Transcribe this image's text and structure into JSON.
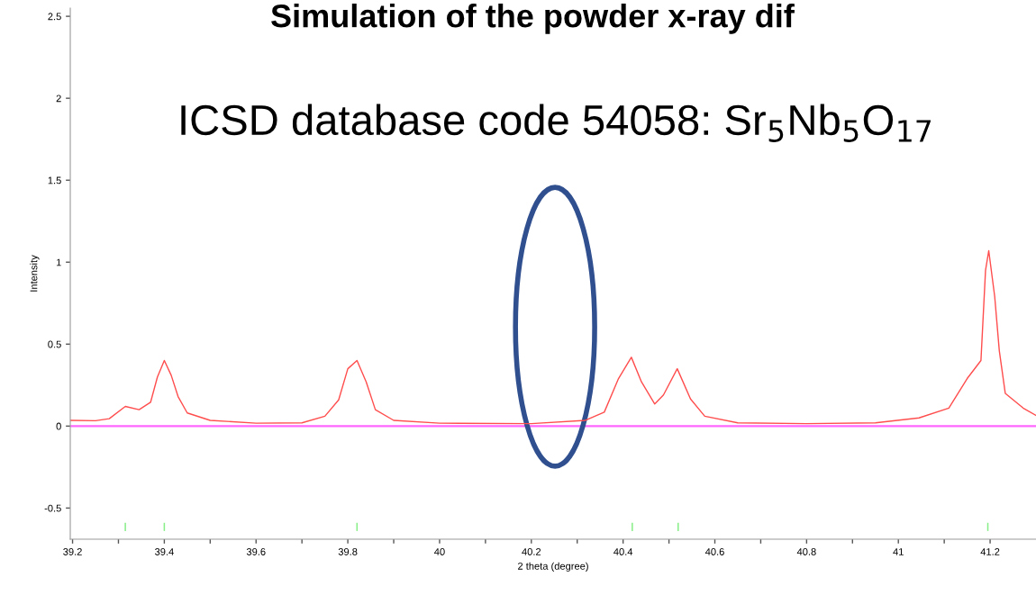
{
  "chart_data": {
    "type": "line",
    "title": "Simulation of the powder x-ray dif",
    "subtitle": "ICSD database code 54058: Sr$_{5}$Nb$_{5}$O$_{17}$",
    "xlabel": "2 theta (degree)",
    "ylabel": "Intensity",
    "series": [
      {
        "color": "#ff4d4d",
        "x": [
          39.195,
          39.25,
          39.28,
          39.315,
          39.345,
          39.37,
          39.385,
          39.4,
          39.415,
          39.43,
          39.45,
          39.5,
          39.6,
          39.7,
          39.75,
          39.78,
          39.8,
          39.82,
          39.84,
          39.86,
          39.9,
          40.0,
          40.2,
          40.318,
          40.359,
          40.39,
          40.418,
          40.44,
          40.469,
          40.488,
          40.518,
          40.547,
          40.578,
          40.65,
          40.8,
          40.95,
          41.045,
          41.11,
          41.15,
          41.18,
          41.19,
          41.197,
          41.21,
          41.22,
          41.233,
          41.272,
          41.3
        ],
        "values": [
          0.035,
          0.033,
          0.045,
          0.12,
          0.1,
          0.145,
          0.3,
          0.4,
          0.31,
          0.18,
          0.08,
          0.035,
          0.018,
          0.02,
          0.06,
          0.16,
          0.35,
          0.4,
          0.27,
          0.1,
          0.035,
          0.018,
          0.015,
          0.035,
          0.085,
          0.29,
          0.42,
          0.27,
          0.135,
          0.19,
          0.35,
          0.165,
          0.06,
          0.02,
          0.015,
          0.02,
          0.05,
          0.11,
          0.29,
          0.4,
          0.95,
          1.07,
          0.79,
          0.46,
          0.2,
          0.11,
          0.065
        ]
      },
      {
        "type": "bar",
        "color": "#88ee88",
        "x": [
          39.315,
          39.4,
          39.82,
          40.42,
          40.52,
          41.195
        ],
        "values": [
          0.05,
          0.05,
          0.05,
          0.05,
          0.05,
          0.05
        ],
        "base": [
          -0.64,
          -0.64,
          -0.64,
          -0.64,
          -0.64,
          -0.64
        ]
      }
    ],
    "ref_lines": [
      {
        "axis": "y",
        "value": 0,
        "color": "#ff66ff"
      }
    ],
    "xlim": [
      39.195,
      41.3
    ],
    "ylim": [
      -0.69,
      2.55
    ],
    "xticks": [
      39.2,
      {
        "value": 39.3,
        "label": null
      },
      39.4,
      {
        "value": 39.5,
        "label": null
      },
      39.6,
      {
        "value": 39.7,
        "label": null
      },
      39.8,
      {
        "value": 39.9,
        "label": null
      },
      40,
      {
        "value": 40.1,
        "label": null
      },
      40.2,
      {
        "value": 40.3,
        "label": null
      },
      40.4,
      {
        "value": 40.5,
        "label": null
      },
      40.6,
      {
        "value": 40.7,
        "label": null
      },
      40.8,
      {
        "value": 40.9,
        "label": null
      },
      41,
      {
        "value": 41.1,
        "label": null
      },
      41.2
    ],
    "yticks": [
      -0.5,
      0,
      0.5,
      1,
      1.5,
      2,
      2.5
    ],
    "grid": false,
    "legend": false
  }
}
